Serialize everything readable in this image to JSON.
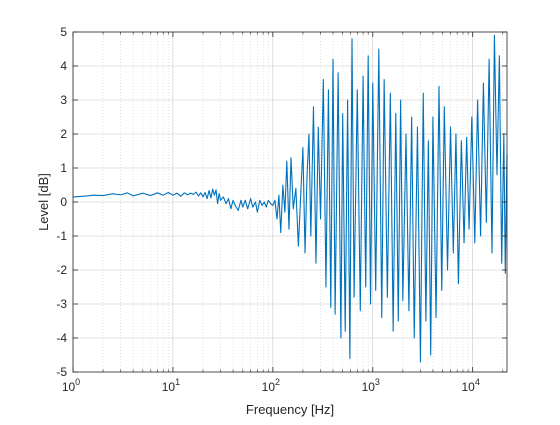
{
  "chart_data": {
    "type": "line",
    "xscale": "log",
    "xlabel": "Frequency [Hz]",
    "ylabel": "Level [dB]",
    "xlim": [
      1,
      22050
    ],
    "ylim": [
      -5,
      5
    ],
    "grid": true,
    "minor_grid": true,
    "x_ticks": [
      {
        "value": 1,
        "base": "10",
        "exp": "0"
      },
      {
        "value": 10,
        "base": "10",
        "exp": "1"
      },
      {
        "value": 100,
        "base": "10",
        "exp": "2"
      },
      {
        "value": 1000,
        "base": "10",
        "exp": "3"
      },
      {
        "value": 10000,
        "base": "10",
        "exp": "4"
      }
    ],
    "y_ticks": [
      {
        "value": 5,
        "label": "5"
      },
      {
        "value": 4,
        "label": "4"
      },
      {
        "value": 3,
        "label": "3"
      },
      {
        "value": 2,
        "label": "2"
      },
      {
        "value": 1,
        "label": "1"
      },
      {
        "value": 0,
        "label": "0"
      },
      {
        "value": -1,
        "label": "-1"
      },
      {
        "value": -2,
        "label": "-2"
      },
      {
        "value": -3,
        "label": "-3"
      },
      {
        "value": -4,
        "label": "-4"
      },
      {
        "value": -5,
        "label": "-5"
      }
    ],
    "series": [
      {
        "color": "#0072BD",
        "points": [
          [
            1.0,
            0.15
          ],
          [
            1.3,
            0.17
          ],
          [
            1.6,
            0.2
          ],
          [
            2.0,
            0.19
          ],
          [
            2.5,
            0.24
          ],
          [
            3.0,
            0.21
          ],
          [
            3.5,
            0.27
          ],
          [
            4.0,
            0.18
          ],
          [
            5.0,
            0.26
          ],
          [
            6.0,
            0.19
          ],
          [
            7.0,
            0.27
          ],
          [
            8.0,
            0.2
          ],
          [
            9.0,
            0.28
          ],
          [
            10.0,
            0.2
          ],
          [
            11.0,
            0.26
          ],
          [
            12.0,
            0.17
          ],
          [
            13.0,
            0.27
          ],
          [
            14.0,
            0.21
          ],
          [
            15.0,
            0.26
          ],
          [
            16.0,
            0.22
          ],
          [
            17.0,
            0.29
          ],
          [
            18.0,
            0.18
          ],
          [
            19.0,
            0.27
          ],
          [
            20.0,
            0.15
          ],
          [
            21.0,
            0.28
          ],
          [
            22.0,
            0.1
          ],
          [
            23.0,
            0.34
          ],
          [
            24.0,
            0.12
          ],
          [
            25.0,
            0.38
          ],
          [
            26.0,
            0.2
          ],
          [
            27.0,
            0.36
          ],
          [
            28.0,
            -0.05
          ],
          [
            29.0,
            0.25
          ],
          [
            30.0,
            0.05
          ],
          [
            32.0,
            0.15
          ],
          [
            34.0,
            -0.05
          ],
          [
            36.0,
            0.1
          ],
          [
            38.0,
            -0.2
          ],
          [
            40.0,
            0.05
          ],
          [
            42.0,
            -0.1
          ],
          [
            45.0,
            -0.25
          ],
          [
            48.0,
            0.05
          ],
          [
            50.0,
            -0.15
          ],
          [
            53.0,
            0.05
          ],
          [
            56.0,
            -0.2
          ],
          [
            60.0,
            0.1
          ],
          [
            63.0,
            -0.15
          ],
          [
            67.0,
            0.0
          ],
          [
            70.0,
            -0.3
          ],
          [
            74.0,
            0.05
          ],
          [
            78.0,
            -0.1
          ],
          [
            82.0,
            0.0
          ],
          [
            86.0,
            -0.15
          ],
          [
            90.0,
            0.05
          ],
          [
            95.0,
            -0.05
          ],
          [
            100.0,
            -0.1
          ],
          [
            105.0,
            0.05
          ],
          [
            110.0,
            -0.5
          ],
          [
            115.0,
            0.2
          ],
          [
            120.0,
            -0.9
          ],
          [
            126.0,
            0.5
          ],
          [
            132.0,
            -0.3
          ],
          [
            138.0,
            1.2
          ],
          [
            145.0,
            -0.8
          ],
          [
            152.0,
            1.3
          ],
          [
            160.0,
            -0.2
          ],
          [
            170.0,
            0.4
          ],
          [
            180.0,
            -1.3
          ],
          [
            190.0,
            0.2
          ],
          [
            200.0,
            1.6
          ],
          [
            210.0,
            -1.5
          ],
          [
            220.0,
            0.8
          ],
          [
            230.0,
            2.0
          ],
          [
            240.0,
            -1.0
          ],
          [
            255.0,
            2.8
          ],
          [
            270.0,
            -1.8
          ],
          [
            285.0,
            2.2
          ],
          [
            300.0,
            -0.5
          ],
          [
            320.0,
            3.6
          ],
          [
            340.0,
            -2.5
          ],
          [
            360.0,
            3.3
          ],
          [
            380.0,
            -3.1
          ],
          [
            400.0,
            4.2
          ],
          [
            420.0,
            -3.3
          ],
          [
            450.0,
            3.8
          ],
          [
            480.0,
            -4.0
          ],
          [
            500.0,
            2.6
          ],
          [
            530.0,
            -3.8
          ],
          [
            560.0,
            3.0
          ],
          [
            590.0,
            -4.6
          ],
          [
            620.0,
            4.8
          ],
          [
            650.0,
            -2.8
          ],
          [
            700.0,
            3.3
          ],
          [
            750.0,
            -3.2
          ],
          [
            800.0,
            3.7
          ],
          [
            850.0,
            -2.5
          ],
          [
            900.0,
            4.3
          ],
          [
            950.0,
            -3.0
          ],
          [
            1000.0,
            3.5
          ],
          [
            1070.0,
            -2.6
          ],
          [
            1150.0,
            4.5
          ],
          [
            1230.0,
            -3.4
          ],
          [
            1300.0,
            3.6
          ],
          [
            1400.0,
            -2.8
          ],
          [
            1500.0,
            3.2
          ],
          [
            1600.0,
            -3.8
          ],
          [
            1700.0,
            2.6
          ],
          [
            1800.0,
            -3.5
          ],
          [
            1900.0,
            3.0
          ],
          [
            2000.0,
            -2.9
          ],
          [
            2150.0,
            2.0
          ],
          [
            2300.0,
            -3.2
          ],
          [
            2450.0,
            2.5
          ],
          [
            2600.0,
            -4.0
          ],
          [
            2800.0,
            2.2
          ],
          [
            3000.0,
            -4.7
          ],
          [
            3200.0,
            3.2
          ],
          [
            3400.0,
            -3.5
          ],
          [
            3600.0,
            1.8
          ],
          [
            3800.0,
            -4.5
          ],
          [
            4000.0,
            2.5
          ],
          [
            4300.0,
            -3.4
          ],
          [
            4600.0,
            3.4
          ],
          [
            4900.0,
            -2.6
          ],
          [
            5200.0,
            2.8
          ],
          [
            5600.0,
            -2.0
          ],
          [
            6000.0,
            2.2
          ],
          [
            6400.0,
            -1.5
          ],
          [
            6800.0,
            2.0
          ],
          [
            7200.0,
            -2.4
          ],
          [
            7700.0,
            1.8
          ],
          [
            8200.0,
            -1.2
          ],
          [
            8700.0,
            1.9
          ],
          [
            9200.0,
            -0.8
          ],
          [
            9800.0,
            2.5
          ],
          [
            10500.0,
            -1.2
          ],
          [
            11200.0,
            3.0
          ],
          [
            12000.0,
            -1.0
          ],
          [
            12800.0,
            3.5
          ],
          [
            13700.0,
            -0.6
          ],
          [
            14600.0,
            4.2
          ],
          [
            15600.0,
            -1.5
          ],
          [
            16500.0,
            4.9
          ],
          [
            17500.0,
            0.8
          ],
          [
            18500.0,
            4.3
          ],
          [
            19500.0,
            -1.8
          ],
          [
            20500.0,
            2.0
          ],
          [
            21200.0,
            -2.1
          ],
          [
            22050.0,
            1.4
          ]
        ]
      }
    ]
  }
}
